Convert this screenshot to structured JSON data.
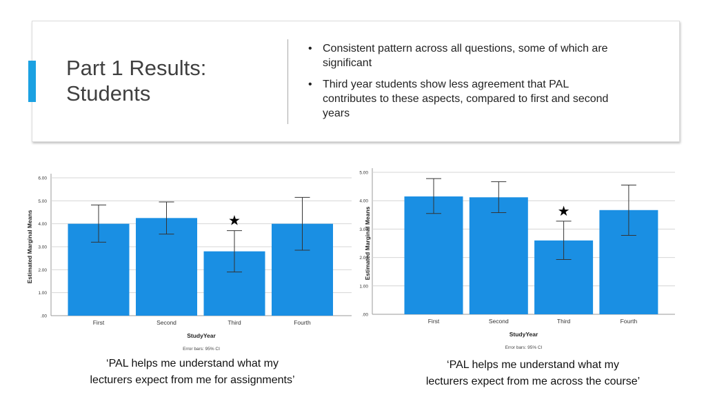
{
  "slide": {
    "title_line1": "Part 1 Results:",
    "title_line2": "Students",
    "bullets": [
      {
        "line1": "Consistent pattern across all questions, some of which are",
        "line2": "significant",
        "line3": ""
      },
      {
        "line1": "Third year students show less agreement that PAL",
        "line2": "contributes to these aspects, compared to first and second",
        "line3": "years"
      }
    ],
    "bullet_symbol": "•",
    "accent_color": "#1ba1e2"
  },
  "chart_data": [
    {
      "type": "bar",
      "categories": [
        "First",
        "Second",
        "Third",
        "Fourth"
      ],
      "values": [
        4.0,
        4.25,
        2.8,
        4.0
      ],
      "error_low": [
        3.2,
        3.55,
        1.9,
        2.85
      ],
      "error_high": [
        4.82,
        4.95,
        3.7,
        5.15
      ],
      "xlabel": "StudyYear",
      "ylabel": "Estimated Marginal Means",
      "ylim": [
        0,
        6
      ],
      "yticks": [
        ".00",
        "1.00",
        "2.00",
        "3.00",
        "4.00",
        "5.00",
        "6.00"
      ],
      "note": "Error bars: 95% CI",
      "marker": "★",
      "marker_category": "Third",
      "grid": true,
      "bar_color": "#1a8fe3",
      "caption_line1": "‘PAL helps me understand what my",
      "caption_line2": "lecturers expect from me for assignments’"
    },
    {
      "type": "bar",
      "categories": [
        "First",
        "Second",
        "Third",
        "Fourth"
      ],
      "values": [
        4.15,
        4.12,
        2.6,
        3.67
      ],
      "error_low": [
        3.55,
        3.58,
        1.93,
        2.78
      ],
      "error_high": [
        4.78,
        4.67,
        3.28,
        4.55
      ],
      "xlabel": "StudyYear",
      "ylabel": "Estimated Marginal Means",
      "ylim": [
        0,
        5
      ],
      "yticks": [
        ".00",
        "1.00",
        "2.00",
        "3.00",
        "4.00",
        "5.00"
      ],
      "note": "Error bars: 95% CI",
      "marker": "★",
      "marker_category": "Third",
      "grid": true,
      "bar_color": "#1a8fe3",
      "caption_line1": "‘PAL helps me understand what my",
      "caption_line2": "lecturers expect from me across the course’"
    }
  ]
}
